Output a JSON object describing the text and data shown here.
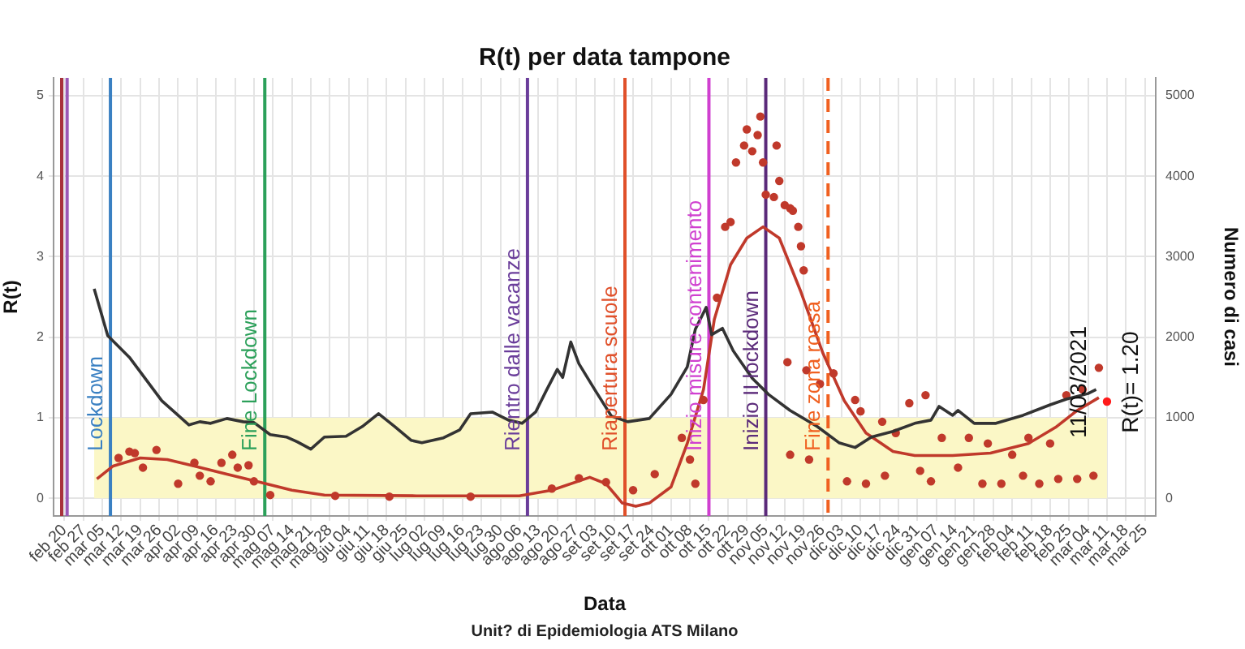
{
  "chart_data": {
    "type": "line",
    "title": "R(t) per data tampone",
    "xlabel": "Data",
    "ylabel": "R(t)",
    "y2label": "Numero di casi",
    "xlim": [
      "2020-02-16",
      "2021-03-29"
    ],
    "xticks": [
      {
        "value": "2020-02-20",
        "label": "feb 20"
      },
      {
        "value": "2020-02-27",
        "label": "feb 27"
      },
      {
        "value": "2020-03-05",
        "label": "mar 05"
      },
      {
        "value": "2020-03-12",
        "label": "mar 12"
      },
      {
        "value": "2020-03-19",
        "label": "mar 19"
      },
      {
        "value": "2020-03-26",
        "label": "mar 26"
      },
      {
        "value": "2020-04-02",
        "label": "apr 02"
      },
      {
        "value": "2020-04-09",
        "label": "apr 09"
      },
      {
        "value": "2020-04-16",
        "label": "apr 16"
      },
      {
        "value": "2020-04-23",
        "label": "apr 23"
      },
      {
        "value": "2020-04-30",
        "label": "apr 30"
      },
      {
        "value": "2020-05-07",
        "label": "mag 07"
      },
      {
        "value": "2020-05-14",
        "label": "mag 14"
      },
      {
        "value": "2020-05-21",
        "label": "mag 21"
      },
      {
        "value": "2020-05-28",
        "label": "mag 28"
      },
      {
        "value": "2020-06-04",
        "label": "giu 04"
      },
      {
        "value": "2020-06-11",
        "label": "giu 11"
      },
      {
        "value": "2020-06-18",
        "label": "giu 18"
      },
      {
        "value": "2020-06-25",
        "label": "giu 25"
      },
      {
        "value": "2020-07-02",
        "label": "lug 02"
      },
      {
        "value": "2020-07-09",
        "label": "lug 09"
      },
      {
        "value": "2020-07-16",
        "label": "lug 16"
      },
      {
        "value": "2020-07-23",
        "label": "lug 23"
      },
      {
        "value": "2020-07-30",
        "label": "lug 30"
      },
      {
        "value": "2020-08-06",
        "label": "ago 06"
      },
      {
        "value": "2020-08-13",
        "label": "ago 13"
      },
      {
        "value": "2020-08-20",
        "label": "ago 20"
      },
      {
        "value": "2020-08-27",
        "label": "ago 27"
      },
      {
        "value": "2020-09-03",
        "label": "set 03"
      },
      {
        "value": "2020-09-10",
        "label": "set 10"
      },
      {
        "value": "2020-09-17",
        "label": "set 17"
      },
      {
        "value": "2020-09-24",
        "label": "set 24"
      },
      {
        "value": "2020-10-01",
        "label": "ott 01"
      },
      {
        "value": "2020-10-08",
        "label": "ott 08"
      },
      {
        "value": "2020-10-15",
        "label": "ott 15"
      },
      {
        "value": "2020-10-22",
        "label": "ott 22"
      },
      {
        "value": "2020-10-29",
        "label": "ott 29"
      },
      {
        "value": "2020-11-05",
        "label": "nov 05"
      },
      {
        "value": "2020-11-12",
        "label": "nov 12"
      },
      {
        "value": "2020-11-19",
        "label": "nov 19"
      },
      {
        "value": "2020-11-26",
        "label": "nov 26"
      },
      {
        "value": "2020-12-03",
        "label": "dic 03"
      },
      {
        "value": "2020-12-10",
        "label": "dic 10"
      },
      {
        "value": "2020-12-17",
        "label": "dic 17"
      },
      {
        "value": "2020-12-24",
        "label": "dic 24"
      },
      {
        "value": "2020-12-31",
        "label": "dic 31"
      },
      {
        "value": "2021-01-07",
        "label": "gen 07"
      },
      {
        "value": "2021-01-14",
        "label": "gen 14"
      },
      {
        "value": "2021-01-21",
        "label": "gen 21"
      },
      {
        "value": "2021-01-28",
        "label": "gen 28"
      },
      {
        "value": "2021-02-04",
        "label": "feb 04"
      },
      {
        "value": "2021-02-11",
        "label": "feb 11"
      },
      {
        "value": "2021-02-18",
        "label": "feb 18"
      },
      {
        "value": "2021-02-25",
        "label": "feb 25"
      },
      {
        "value": "2021-03-04",
        "label": "mar 04"
      },
      {
        "value": "2021-03-11",
        "label": "mar 11"
      },
      {
        "value": "2021-03-18",
        "label": "mar 18"
      },
      {
        "value": "2021-03-25",
        "label": "mar 25"
      }
    ],
    "ylim": [
      -0.22,
      5.22
    ],
    "yticks": [
      0,
      1,
      2,
      3,
      4,
      5
    ],
    "y2lim": [
      -220,
      5220
    ],
    "y2ticks": [
      0,
      1000,
      2000,
      3000,
      4000,
      5000
    ],
    "grid": true,
    "legend": false,
    "bands": [
      {
        "axis": "y",
        "from": 0,
        "to": 1,
        "color": "#fbf7c6"
      }
    ],
    "ref_lines": [
      {
        "axis": "x",
        "value": "2020-02-19",
        "color": "#a8323c"
      },
      {
        "axis": "x",
        "value": "2020-02-21",
        "color": "#9b59b6"
      },
      {
        "axis": "x",
        "value": "2020-03-08",
        "label": "Lockdown",
        "color": "#3a80c2"
      },
      {
        "axis": "x",
        "value": "2020-05-04",
        "label": "Fine Lockdown",
        "color": "#2ca05a"
      },
      {
        "axis": "x",
        "value": "2020-08-09",
        "label": "Rientro dalle vacanze",
        "color": "#6a3d9a"
      },
      {
        "axis": "x",
        "value": "2020-09-14",
        "label": "Riapertura scuole",
        "color": "#e0502a"
      },
      {
        "axis": "x",
        "value": "2020-10-15",
        "label": "Inizio misure contenimento",
        "color": "#d040d0"
      },
      {
        "axis": "x",
        "value": "2020-11-05",
        "label": "Inizio II lockdown",
        "color": "#5b2a7a"
      },
      {
        "axis": "x",
        "value": "2020-11-28",
        "label": "Fine zona rossa",
        "color": "#f06020",
        "line_style": "dashed"
      }
    ],
    "series": [
      {
        "axis": "y",
        "color": "#333333",
        "x": [
          "2020-03-02",
          "2020-03-07",
          "2020-03-15",
          "2020-03-27",
          "2020-04-06",
          "2020-04-10",
          "2020-04-14",
          "2020-04-20",
          "2020-04-26",
          "2020-04-30",
          "2020-05-06",
          "2020-05-12",
          "2020-05-16",
          "2020-05-21",
          "2020-05-26",
          "2020-06-03",
          "2020-06-09",
          "2020-06-15",
          "2020-06-21",
          "2020-06-27",
          "2020-07-01",
          "2020-07-09",
          "2020-07-15",
          "2020-07-19",
          "2020-07-27",
          "2020-08-02",
          "2020-08-07",
          "2020-08-12",
          "2020-08-16",
          "2020-08-20",
          "2020-08-22",
          "2020-08-25",
          "2020-08-28",
          "2020-09-03",
          "2020-09-09",
          "2020-09-15",
          "2020-09-23",
          "2020-10-01",
          "2020-10-07",
          "2020-10-10",
          "2020-10-14",
          "2020-10-16",
          "2020-10-20",
          "2020-10-24",
          "2020-10-31",
          "2020-11-06",
          "2020-11-14",
          "2020-11-24",
          "2020-12-02",
          "2020-12-08",
          "2020-12-14",
          "2020-12-22",
          "2020-12-30",
          "2021-01-05",
          "2021-01-08",
          "2021-01-13",
          "2021-01-15",
          "2021-01-21",
          "2021-01-29",
          "2021-02-08",
          "2021-02-18",
          "2021-02-24",
          "2021-03-04",
          "2021-03-07"
        ],
        "values": [
          2.6,
          2.02,
          1.75,
          1.21,
          0.91,
          0.95,
          0.93,
          0.99,
          0.95,
          0.94,
          0.79,
          0.76,
          0.7,
          0.61,
          0.76,
          0.77,
          0.89,
          1.05,
          0.89,
          0.72,
          0.69,
          0.75,
          0.85,
          1.05,
          1.07,
          0.97,
          0.93,
          1.07,
          1.34,
          1.6,
          1.5,
          1.94,
          1.67,
          1.34,
          1.02,
          0.95,
          0.99,
          1.29,
          1.63,
          2.1,
          2.37,
          2.03,
          2.11,
          1.83,
          1.49,
          1.29,
          1.09,
          0.89,
          0.69,
          0.63,
          0.76,
          0.83,
          0.93,
          0.97,
          1.14,
          1.03,
          1.09,
          0.93,
          0.93,
          1.03,
          1.16,
          1.23,
          1.3,
          1.35
        ]
      },
      {
        "type": "scatter",
        "axis": "y2",
        "color": "#c0392b",
        "marker": "circle",
        "x": [
          "2020-03-11",
          "2020-03-15",
          "2020-03-17",
          "2020-03-20",
          "2020-03-25",
          "2020-04-02",
          "2020-04-08",
          "2020-04-10",
          "2020-04-14",
          "2020-04-18",
          "2020-04-22",
          "2020-04-24",
          "2020-04-28",
          "2020-04-30",
          "2020-05-06",
          "2020-05-30",
          "2020-06-19",
          "2020-07-19",
          "2020-08-18",
          "2020-08-28",
          "2020-09-07",
          "2020-09-17",
          "2020-09-25",
          "2020-10-05",
          "2020-10-08",
          "2020-10-10",
          "2020-10-13",
          "2020-10-18",
          "2020-10-21",
          "2020-10-23",
          "2020-10-25",
          "2020-10-28",
          "2020-10-29",
          "2020-10-31",
          "2020-11-02",
          "2020-11-03",
          "2020-11-04",
          "2020-11-05",
          "2020-11-08",
          "2020-11-09",
          "2020-11-10",
          "2020-11-12",
          "2020-11-13",
          "2020-11-14",
          "2020-11-14",
          "2020-11-15",
          "2020-11-17",
          "2020-11-18",
          "2020-11-19",
          "2020-11-20",
          "2020-11-21",
          "2020-11-25",
          "2020-11-30",
          "2020-12-05",
          "2020-12-08",
          "2020-12-10",
          "2020-12-12",
          "2020-12-18",
          "2020-12-19",
          "2020-12-23",
          "2020-12-28",
          "2021-01-01",
          "2021-01-03",
          "2021-01-05",
          "2021-01-09",
          "2021-01-15",
          "2021-01-19",
          "2021-01-24",
          "2021-01-26",
          "2021-01-31",
          "2021-02-04",
          "2021-02-08",
          "2021-02-10",
          "2021-02-14",
          "2021-02-18",
          "2021-02-21",
          "2021-02-24",
          "2021-02-28",
          "2021-03-02",
          "2021-03-06",
          "2021-03-08"
        ],
        "values": [
          500,
          580,
          560,
          380,
          600,
          180,
          440,
          280,
          210,
          440,
          540,
          380,
          410,
          210,
          40,
          30,
          20,
          20,
          120,
          250,
          200,
          100,
          300,
          750,
          480,
          180,
          1220,
          2490,
          3370,
          3430,
          4170,
          4380,
          4580,
          4310,
          4510,
          4740,
          4170,
          3770,
          3740,
          4380,
          3940,
          3640,
          1690,
          3600,
          540,
          3570,
          3370,
          3130,
          2830,
          1590,
          480,
          1420,
          1550,
          210,
          1220,
          1080,
          180,
          950,
          280,
          810,
          1180,
          340,
          1280,
          210,
          750,
          380,
          750,
          180,
          680,
          180,
          540,
          280,
          750,
          180,
          680,
          240,
          1280,
          240,
          1350,
          280,
          1620
        ]
      },
      {
        "axis": "y2",
        "color": "#c0392b",
        "x": [
          "2020-03-03",
          "2020-03-09",
          "2020-03-19",
          "2020-03-29",
          "2020-04-08",
          "2020-04-20",
          "2020-05-02",
          "2020-05-14",
          "2020-05-26",
          "2020-06-29",
          "2020-08-06",
          "2020-08-18",
          "2020-09-01",
          "2020-09-07",
          "2020-09-13",
          "2020-09-18",
          "2020-09-23",
          "2020-10-01",
          "2020-10-07",
          "2020-10-13",
          "2020-10-17",
          "2020-10-23",
          "2020-10-29",
          "2020-11-04",
          "2020-11-10",
          "2020-11-18",
          "2020-11-26",
          "2020-12-04",
          "2020-12-12",
          "2020-12-22",
          "2020-12-30",
          "2021-01-13",
          "2021-01-27",
          "2021-02-10",
          "2021-02-20",
          "2021-02-28",
          "2021-03-08"
        ],
        "values": [
          240,
          400,
          500,
          480,
          400,
          300,
          200,
          100,
          40,
          30,
          30,
          100,
          260,
          180,
          -60,
          -100,
          -60,
          140,
          680,
          1350,
          2220,
          2900,
          3230,
          3370,
          3230,
          2560,
          1810,
          1210,
          810,
          580,
          530,
          530,
          560,
          680,
          880,
          1090,
          1250
        ]
      },
      {
        "type": "scatter",
        "axis": "y",
        "color": "#ff1a1a",
        "marker": "circle",
        "x": [
          "2021-03-11"
        ],
        "values": [
          1.2
        ]
      }
    ],
    "annotations": [
      {
        "text": "11/03/2021",
        "x": "2021-03-11",
        "y": 1.2
      },
      {
        "text": "R(t)= 1.20",
        "x": "2021-03-11",
        "y": 1.2
      },
      "Unit? di Epidemiologia ATS Milano"
    ]
  }
}
